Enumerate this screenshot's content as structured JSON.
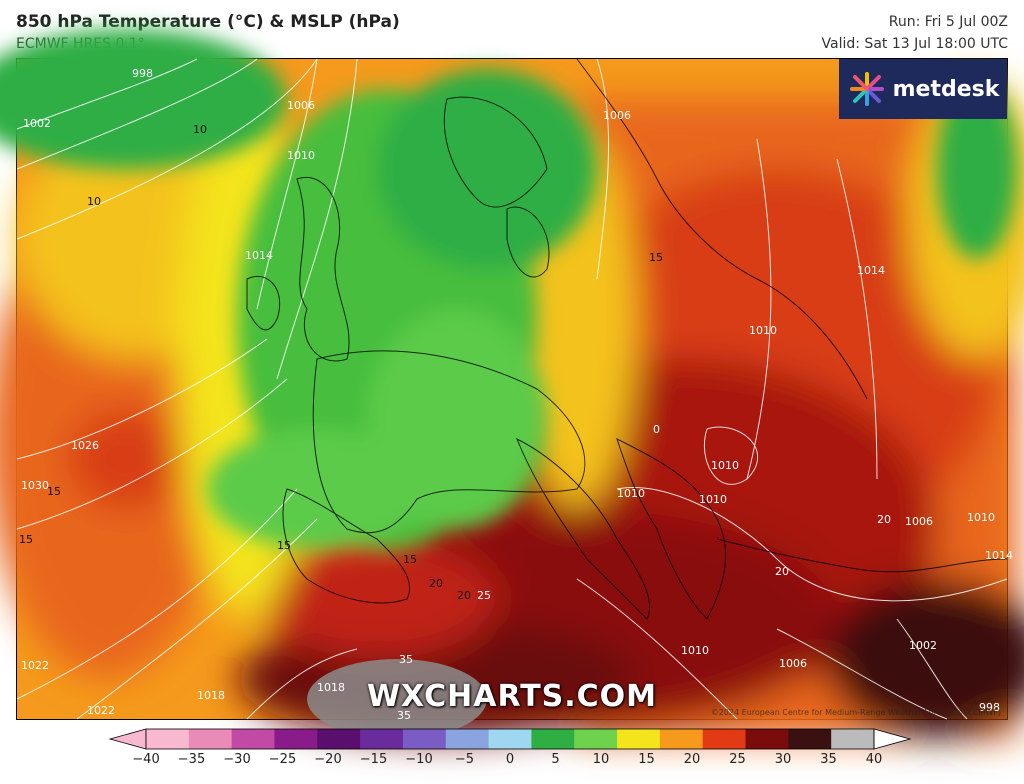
{
  "header": {
    "title": "850 hPa Temperature (°C) & MSLP (hPa)",
    "subtitle": "ECMWF HRES 0.1°",
    "run": "Run: Fri 5 Jul 00Z",
    "valid": "Valid: Sat 13 Jul 18:00 UTC"
  },
  "logo": {
    "text": "metdesk"
  },
  "watermark": "WXCHARTS.COM",
  "copyright": "©2024 European Centre for Medium-Range Weather Forecasts (ECMWF)",
  "isobar_labels": [
    "998",
    "1002",
    "1006",
    "1010",
    "1014",
    "1018",
    "1022",
    "1026",
    "1030",
    "1006",
    "1010",
    "1014",
    "1010",
    "1010",
    "1006",
    "1010",
    "1014",
    "1010",
    "1006",
    "1002",
    "998",
    "1010",
    "1018",
    "1022"
  ],
  "temp_labels": [
    "10",
    "10",
    "15",
    "15",
    "15",
    "15",
    "20",
    "20",
    "15",
    "0",
    "20",
    "25",
    "35",
    "35",
    "20"
  ],
  "colorbar": {
    "ticks": [
      "−40",
      "−35",
      "−30",
      "−25",
      "−20",
      "−15",
      "−10",
      "−5",
      "0",
      "5",
      "10",
      "15",
      "20",
      "25",
      "30",
      "35",
      "40"
    ],
    "colors": [
      "#f7b8d0",
      "#e98ab7",
      "#c04aa4",
      "#8a1b8a",
      "#5a0e6e",
      "#6a2b9c",
      "#7b5cc4",
      "#8aa4e0",
      "#9fd6f0",
      "#2fae44",
      "#6fd24c",
      "#f4e41c",
      "#f59a1c",
      "#e13a14",
      "#7a0c0c",
      "#3b1010",
      "#bbbbbb"
    ]
  }
}
